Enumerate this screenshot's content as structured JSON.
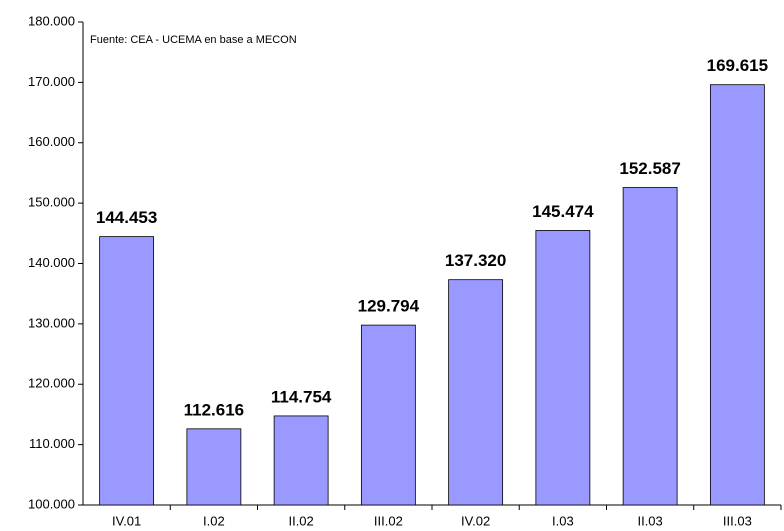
{
  "chart_data": {
    "type": "bar",
    "note": "Fuente: CEA - UCEMA en base a MECON",
    "categories": [
      "IV.01",
      "I.02",
      "II.02",
      "III.02",
      "IV.02",
      "I.03",
      "II.03",
      "III.03"
    ],
    "values": [
      144453,
      112616,
      114754,
      129794,
      137320,
      145474,
      152587,
      169615
    ],
    "value_labels": [
      "144.453",
      "112.616",
      "114.754",
      "129.794",
      "137.320",
      "145.474",
      "152.587",
      "169.615"
    ],
    "color": "#9999ff",
    "ylim": [
      100000,
      180000
    ],
    "yticks": [
      {
        "value": 100000,
        "label": "100.000"
      },
      {
        "value": 110000,
        "label": "110.000"
      },
      {
        "value": 120000,
        "label": "120.000"
      },
      {
        "value": 130000,
        "label": "130.000"
      },
      {
        "value": 140000,
        "label": "140.000"
      },
      {
        "value": 150000,
        "label": "150.000"
      },
      {
        "value": 160000,
        "label": "160.000"
      },
      {
        "value": 170000,
        "label": "170.000"
      },
      {
        "value": 180000,
        "label": "180.000"
      }
    ],
    "grid": false
  }
}
